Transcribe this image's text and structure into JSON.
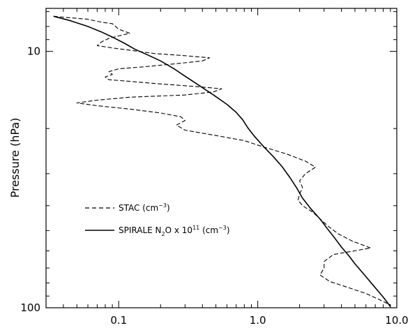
{
  "chart_data": {
    "type": "line",
    "title": "",
    "xlabel": "",
    "ylabel": "Pressure (hPa)",
    "xscale": "log",
    "yscale": "log",
    "yinverted": true,
    "xlim": [
      0.03,
      10.0
    ],
    "ylim": [
      100,
      6.8
    ],
    "x_tick_labels": [
      {
        "value": 0.1,
        "label": "0.1"
      },
      {
        "value": 1.0,
        "label": "1.0"
      },
      {
        "value": 10.0,
        "label": "10.0"
      }
    ],
    "y_tick_labels": [
      {
        "value": 10,
        "label": "10"
      },
      {
        "value": 100,
        "label": "100"
      }
    ],
    "grid": false,
    "legend_position": "lower-left",
    "colors": {
      "series": "#000000",
      "axis": "#000000",
      "background": "#ffffff"
    },
    "series": [
      {
        "name": "SPIRALE N20 x 1011 (cm-3)",
        "legend_label": "SPIRALE N₂O x 10¹¹ (cm⁻³)",
        "legend_main": "SPIRALE N",
        "legend_sub": "2",
        "legend_mid": "O x 10",
        "legend_sup1": "11",
        "legend_unit": " (cm",
        "legend_sup2": "−3",
        "legend_end": ")",
        "style": "solid",
        "x": [
          0.034,
          0.045,
          0.06,
          0.075,
          0.09,
          0.11,
          0.13,
          0.16,
          0.2,
          0.25,
          0.3,
          0.38,
          0.48,
          0.6,
          0.7,
          0.78,
          0.85,
          0.95,
          1.1,
          1.3,
          1.5,
          1.7,
          1.9,
          2.1,
          2.4,
          2.8,
          3.2,
          3.6,
          4.0,
          4.5,
          5.0,
          5.8,
          6.8,
          8.0,
          9.0
        ],
        "y": [
          7.3,
          7.6,
          8.0,
          8.4,
          8.8,
          9.3,
          9.8,
          10.3,
          10.9,
          11.7,
          12.5,
          13.6,
          14.8,
          16.1,
          17.3,
          18.5,
          19.9,
          21.5,
          23.5,
          25.8,
          28.2,
          31.0,
          34.0,
          37.4,
          41.0,
          45.0,
          49.5,
          53.7,
          58.0,
          62.5,
          67.4,
          74.0,
          82.0,
          91.0,
          99.0
        ]
      },
      {
        "name": "STAC (cm-3)",
        "legend_label": "STAC (cm⁻³)",
        "legend_main": "STAC (cm",
        "legend_sup": "−3",
        "legend_end": ")",
        "style": "dashed",
        "x": [
          0.034,
          0.045,
          0.06,
          0.075,
          0.09,
          0.1,
          0.12,
          0.085,
          0.075,
          0.07,
          0.09,
          0.12,
          0.18,
          0.3,
          0.45,
          0.4,
          0.25,
          0.15,
          0.1,
          0.085,
          0.09,
          0.08,
          0.085,
          0.12,
          0.2,
          0.35,
          0.55,
          0.48,
          0.3,
          0.12,
          0.07,
          0.05,
          0.07,
          0.12,
          0.2,
          0.28,
          0.3,
          0.26,
          0.3,
          0.5,
          0.8,
          1.1,
          1.6,
          2.2,
          2.6,
          2.2,
          2.0,
          2.1,
          2.0,
          1.95,
          2.1,
          2.5,
          2.8,
          3.2,
          3.8,
          4.8,
          6.5,
          3.5,
          3.0,
          3.0,
          2.8,
          3.3,
          4.5,
          6.0,
          7.5,
          9.0
        ],
        "y": [
          7.3,
          7.4,
          7.5,
          7.7,
          7.8,
          8.2,
          8.5,
          8.9,
          9.2,
          9.5,
          9.7,
          9.9,
          10.2,
          10.4,
          10.6,
          10.9,
          11.2,
          11.5,
          11.7,
          12.0,
          12.3,
          12.6,
          12.9,
          13.1,
          13.4,
          13.7,
          14.0,
          14.4,
          14.8,
          15.1,
          15.5,
          15.9,
          16.3,
          16.8,
          17.4,
          18.0,
          18.6,
          19.4,
          20.3,
          21.3,
          22.3,
          23.6,
          25.1,
          26.8,
          28.3,
          30.0,
          32.0,
          34.0,
          36.0,
          38.0,
          40.0,
          42.5,
          45.0,
          48.0,
          51.5,
          55.0,
          58.5,
          62.0,
          66.0,
          70.0,
          74.5,
          79.0,
          83.5,
          88.0,
          93.0,
          97.5
        ]
      }
    ]
  }
}
